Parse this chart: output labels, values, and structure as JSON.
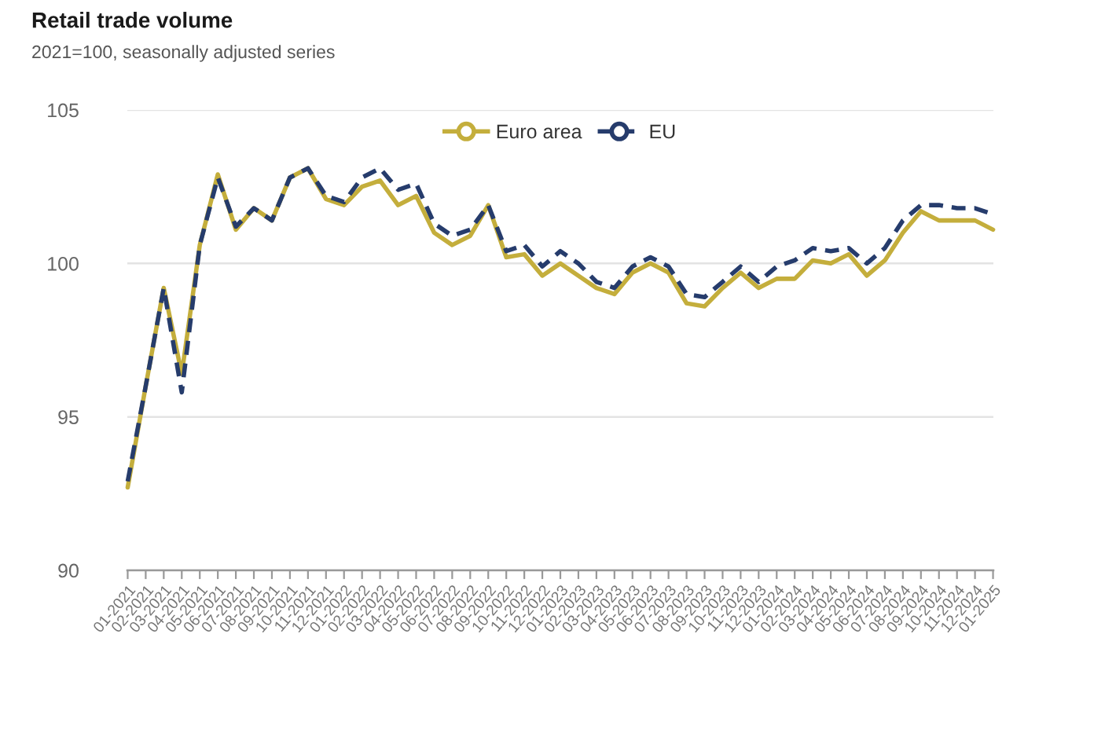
{
  "chart_data": {
    "type": "line",
    "title": "Retail trade volume",
    "subtitle": "2021=100, seasonally adjusted series",
    "categories": [
      "01-2021",
      "02-2021",
      "03-2021",
      "04-2021",
      "05-2021",
      "06-2021",
      "07-2021",
      "08-2021",
      "09-2021",
      "10-2021",
      "11-2021",
      "12-2021",
      "01-2022",
      "02-2022",
      "03-2022",
      "04-2022",
      "05-2022",
      "06-2022",
      "07-2022",
      "08-2022",
      "09-2022",
      "10-2022",
      "11-2022",
      "12-2022",
      "01-2023",
      "02-2023",
      "03-2023",
      "04-2023",
      "05-2023",
      "06-2023",
      "07-2023",
      "08-2023",
      "09-2023",
      "10-2023",
      "11-2023",
      "12-2023",
      "01-2024",
      "02-2024",
      "03-2024",
      "04-2024",
      "05-2024",
      "06-2024",
      "07-2024",
      "08-2024",
      "09-2024",
      "10-2024",
      "11-2024",
      "12-2024",
      "01-2025"
    ],
    "series": [
      {
        "name": "Euro area",
        "color": "#c4ae3c",
        "line_style": "solid",
        "values": [
          92.7,
          96.0,
          99.2,
          96.4,
          100.6,
          102.9,
          101.1,
          101.8,
          101.4,
          102.8,
          103.1,
          102.1,
          101.9,
          102.5,
          102.7,
          101.9,
          102.2,
          101.0,
          100.6,
          100.9,
          101.9,
          100.2,
          100.3,
          99.6,
          100.0,
          99.6,
          99.2,
          99.0,
          99.7,
          100.0,
          99.7,
          98.7,
          98.6,
          99.2,
          99.7,
          99.2,
          99.5,
          99.5,
          100.1,
          100.0,
          100.3,
          99.6,
          100.1,
          101.0,
          101.7,
          101.4,
          101.4,
          101.4,
          101.1
        ]
      },
      {
        "name": "EU",
        "color": "#263c6c",
        "line_style": "dashed",
        "values": [
          92.9,
          96.0,
          99.2,
          95.8,
          100.6,
          102.8,
          101.2,
          101.8,
          101.4,
          102.8,
          103.1,
          102.2,
          102.0,
          102.8,
          103.1,
          102.4,
          102.6,
          101.3,
          100.9,
          101.1,
          101.9,
          100.4,
          100.6,
          99.9,
          100.4,
          100.0,
          99.4,
          99.2,
          99.9,
          100.2,
          99.9,
          99.0,
          98.9,
          99.4,
          99.9,
          99.4,
          99.9,
          100.1,
          100.5,
          100.4,
          100.5,
          100.0,
          100.5,
          101.4,
          101.9,
          101.9,
          101.8,
          101.8,
          101.6
        ]
      }
    ],
    "ylim": [
      90,
      105
    ],
    "yticks": [
      90,
      95,
      100,
      105
    ],
    "grid": "y",
    "legend": "top"
  }
}
